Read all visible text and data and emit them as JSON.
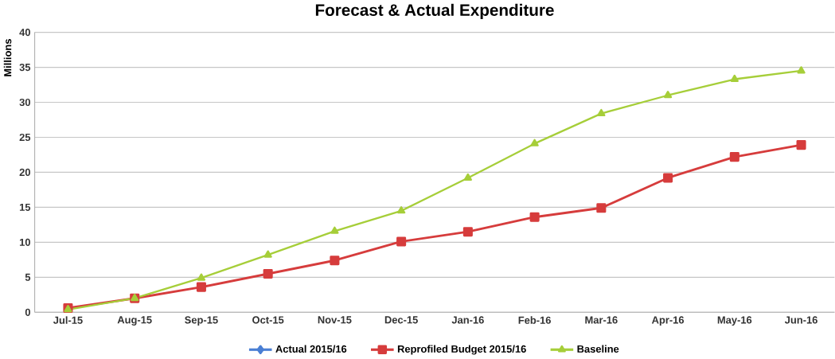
{
  "chart_data": {
    "type": "line",
    "title": "Forecast & Actual Expenditure",
    "ylabel": "Millions",
    "categories": [
      "Jul-15",
      "Aug-15",
      "Sep-15",
      "Oct-15",
      "Nov-15",
      "Dec-15",
      "Jan-16",
      "Feb-16",
      "Mar-16",
      "Apr-16",
      "May-16",
      "Jun-16"
    ],
    "series": [
      {
        "name": "Actual 2015/16",
        "color": "#4a7fd4",
        "marker": "diamond",
        "values": [
          null,
          null,
          null,
          null,
          null,
          null,
          null,
          null,
          null,
          null,
          null,
          null
        ]
      },
      {
        "name": "Reprofiled Budget 2015/16",
        "color": "#d63c3c",
        "marker": "square",
        "values": [
          0.6,
          2.0,
          3.6,
          5.5,
          7.4,
          10.1,
          11.5,
          13.6,
          14.9,
          19.2,
          22.2,
          23.9
        ]
      },
      {
        "name": "Baseline",
        "color": "#a6ce39",
        "marker": "triangle",
        "values": [
          0.4,
          2.0,
          4.9,
          8.2,
          11.6,
          14.5,
          19.2,
          24.1,
          28.4,
          31.0,
          33.3,
          34.5
        ]
      }
    ],
    "ylim": [
      0,
      40
    ],
    "yticks": [
      0,
      5,
      10,
      15,
      20,
      25,
      30,
      35,
      40
    ],
    "grid": "y",
    "legend": "bottom"
  }
}
